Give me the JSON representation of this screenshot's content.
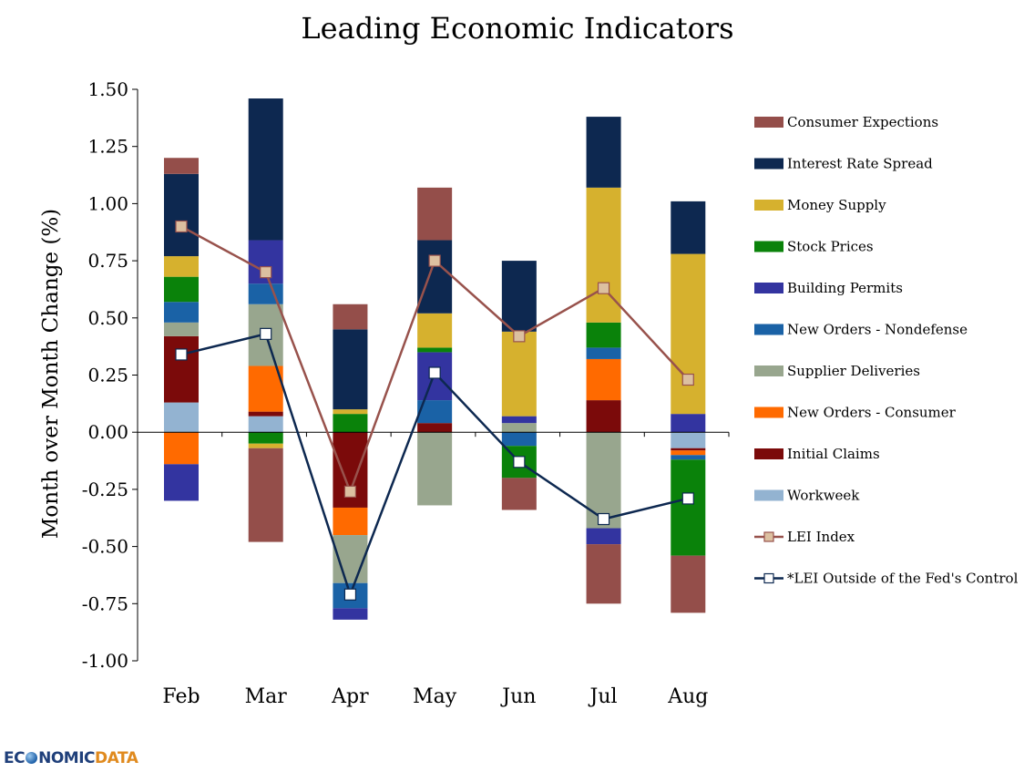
{
  "chart_data": {
    "type": "bar",
    "subtype": "stacked-bar-with-lines",
    "title": "Leading Economic Indicators",
    "xlabel": "",
    "ylabel": "Month over Month Change (%)",
    "ylim": [
      -1.0,
      1.5
    ],
    "yticks": [
      "1.50",
      "1.25",
      "1.00",
      "0.75",
      "0.50",
      "0.25",
      "0.00",
      "-0.25",
      "-0.50",
      "-0.75",
      "-1.00"
    ],
    "ytick_values": [
      1.5,
      1.25,
      1.0,
      0.75,
      0.5,
      0.25,
      0.0,
      -0.25,
      -0.5,
      -0.75,
      -1.0
    ],
    "categories": [
      "Feb",
      "Mar",
      "Apr",
      "May",
      "Jun",
      "Jul",
      "Aug"
    ],
    "grid": false,
    "legend_position": "right",
    "series": [
      {
        "name": "Workweek",
        "color": "#93b3d1",
        "values": [
          0.13,
          0.07,
          0.0,
          0.0,
          0.0,
          0.0,
          -0.07
        ]
      },
      {
        "name": "Initial Claims",
        "color": "#7b0a0a",
        "values": [
          0.29,
          0.02,
          -0.33,
          0.04,
          0.0,
          0.14,
          -0.01
        ]
      },
      {
        "name": "New Orders - Consumer",
        "color": "#ff6a00",
        "values": [
          -0.14,
          0.2,
          -0.12,
          0.0,
          0.0,
          0.18,
          -0.02
        ]
      },
      {
        "name": "Supplier Deliveries",
        "color": "#98a68e",
        "values": [
          0.06,
          0.27,
          -0.21,
          -0.32,
          0.04,
          -0.42,
          0.0
        ]
      },
      {
        "name": "New Orders - Nondefense",
        "color": "#1a62a6",
        "values": [
          0.09,
          0.09,
          -0.11,
          0.1,
          -0.06,
          0.05,
          -0.02
        ]
      },
      {
        "name": "Building Permits",
        "color": "#3334a0",
        "values": [
          -0.16,
          0.19,
          -0.05,
          0.21,
          0.03,
          -0.07,
          0.08
        ]
      },
      {
        "name": "Stock Prices",
        "color": "#0a820a",
        "values": [
          0.11,
          -0.05,
          0.08,
          0.02,
          -0.14,
          0.11,
          -0.42
        ]
      },
      {
        "name": "Money Supply",
        "color": "#d6b12e",
        "values": [
          0.09,
          -0.02,
          0.02,
          0.15,
          0.37,
          0.59,
          0.7
        ]
      },
      {
        "name": "Interest Rate Spread",
        "color": "#0d2850",
        "values": [
          0.36,
          0.62,
          0.35,
          0.32,
          0.31,
          0.31,
          0.23
        ]
      },
      {
        "name": "Consumer Expections",
        "color": "#944e4a",
        "values": [
          0.07,
          -0.41,
          0.11,
          0.23,
          -0.14,
          -0.26,
          -0.25
        ]
      }
    ],
    "lines": [
      {
        "name": "LEI Index",
        "color": "#98524c",
        "marker_fill": "#dcc0a0",
        "values": [
          0.9,
          0.7,
          -0.26,
          0.75,
          0.42,
          0.63,
          0.23
        ]
      },
      {
        "name": "*LEI Outside of the Fed's Control",
        "color": "#0d2850",
        "marker_fill": "#ffffff",
        "values": [
          0.34,
          0.43,
          -0.71,
          0.26,
          -0.13,
          -0.38,
          -0.29
        ]
      }
    ],
    "legend_order": [
      "Consumer Expections",
      "Interest Rate Spread",
      "Money Supply",
      "Stock Prices",
      "Building Permits",
      "New Orders - Nondefense",
      "Supplier Deliveries",
      "New Orders - Consumer",
      "Initial Claims",
      "Workweek",
      "LEI Index",
      "*LEI Outside of the Fed's Control"
    ]
  },
  "logo": {
    "part1": "EC",
    "part2": "NOMIC",
    "part3": "DATA"
  }
}
